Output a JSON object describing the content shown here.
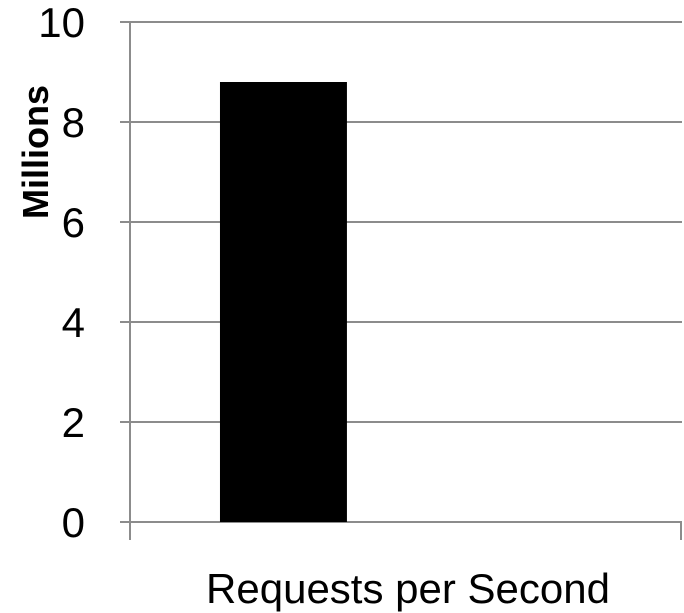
{
  "chart_data": {
    "type": "bar",
    "categories": [
      ""
    ],
    "values": [
      8.8
    ],
    "title": "",
    "xlabel": "Requests per Second",
    "ylabel": "Millions",
    "ylim": [
      0,
      10
    ],
    "yticks": [
      "0",
      "2",
      "4",
      "6",
      "8",
      "10"
    ],
    "grid": true,
    "legend": "none",
    "colors": {
      "bar": "#000000",
      "grid": "#8c8c8c",
      "axis": "#8c8c8c",
      "text": "#000000"
    }
  }
}
